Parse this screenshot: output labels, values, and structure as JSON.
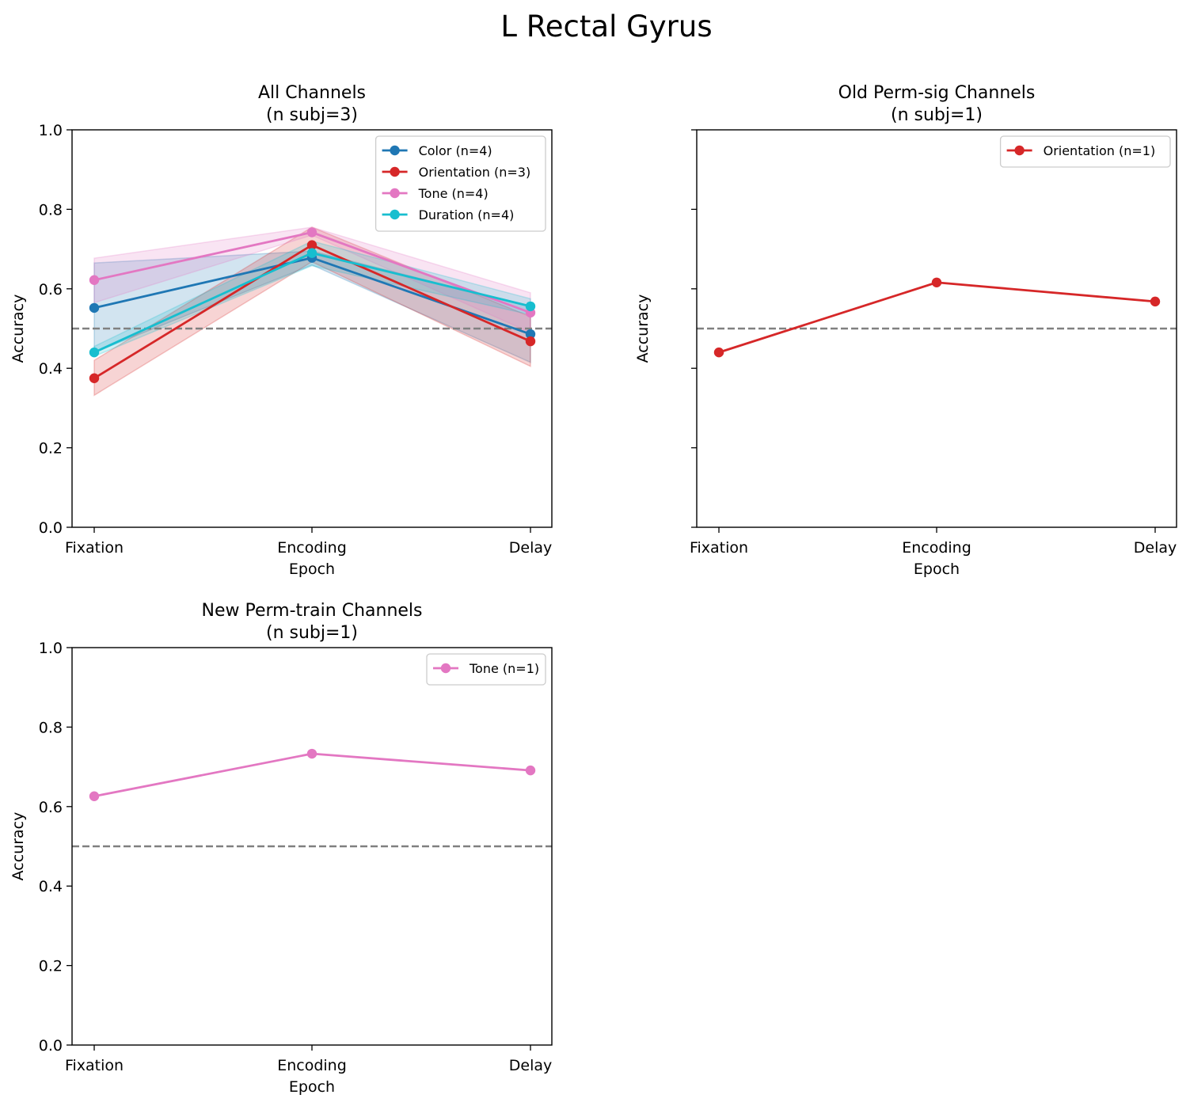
{
  "figure": {
    "title": "L Rectal Gyrus"
  },
  "chart_data": [
    {
      "type": "line",
      "title": "All Channels",
      "subtitle": "(n subj=3)",
      "xlabel": "Epoch",
      "ylabel": "Accuracy",
      "categories": [
        "Fixation",
        "Encoding",
        "Delay"
      ],
      "ylim": [
        0,
        1
      ],
      "yticks": [
        "0.0",
        "0.2",
        "0.4",
        "0.6",
        "0.8",
        "1.0"
      ],
      "show_ytick_labels": true,
      "chance_level": 0.5,
      "legend_position": "top-right",
      "series": [
        {
          "name": "Color (n=4)",
          "color": "#1f77b4",
          "values": [
            0.552,
            0.678,
            0.486
          ],
          "band_lower": [
            0.44,
            0.66,
            0.415
          ],
          "band_upper": [
            0.665,
            0.695,
            0.555
          ]
        },
        {
          "name": "Orientation (n=3)",
          "color": "#d62728",
          "values": [
            0.375,
            0.71,
            0.468
          ],
          "band_lower": [
            0.332,
            0.668,
            0.405
          ],
          "band_upper": [
            0.42,
            0.755,
            0.53
          ]
        },
        {
          "name": "Tone (n=4)",
          "color": "#e377c2",
          "values": [
            0.622,
            0.742,
            0.54
          ],
          "band_lower": [
            0.565,
            0.735,
            0.49
          ],
          "band_upper": [
            0.677,
            0.755,
            0.59
          ]
        },
        {
          "name": "Duration (n=4)",
          "color": "#17becf",
          "values": [
            0.44,
            0.69,
            0.556
          ],
          "band_lower": [
            0.43,
            0.658,
            0.535
          ],
          "band_upper": [
            0.455,
            0.72,
            0.575
          ]
        }
      ]
    },
    {
      "type": "line",
      "title": "Old Perm-sig Channels",
      "subtitle": "(n subj=1)",
      "xlabel": "Epoch",
      "ylabel": "Accuracy",
      "categories": [
        "Fixation",
        "Encoding",
        "Delay"
      ],
      "ylim": [
        0,
        1
      ],
      "yticks": [
        "0.0",
        "0.2",
        "0.4",
        "0.6",
        "0.8",
        "1.0"
      ],
      "show_ytick_labels": false,
      "chance_level": 0.5,
      "legend_position": "top-right",
      "series": [
        {
          "name": "Orientation (n=1)",
          "color": "#d62728",
          "values": [
            0.44,
            0.616,
            0.568
          ]
        }
      ]
    },
    {
      "type": "line",
      "title": "New Perm-train Channels",
      "subtitle": "(n subj=1)",
      "xlabel": "Epoch",
      "ylabel": "Accuracy",
      "categories": [
        "Fixation",
        "Encoding",
        "Delay"
      ],
      "ylim": [
        0,
        1
      ],
      "yticks": [
        "0.0",
        "0.2",
        "0.4",
        "0.6",
        "0.8",
        "1.0"
      ],
      "show_ytick_labels": true,
      "chance_level": 0.5,
      "legend_position": "top-right",
      "series": [
        {
          "name": "Tone (n=1)",
          "color": "#e377c2",
          "values": [
            0.626,
            0.733,
            0.691
          ]
        }
      ]
    }
  ]
}
